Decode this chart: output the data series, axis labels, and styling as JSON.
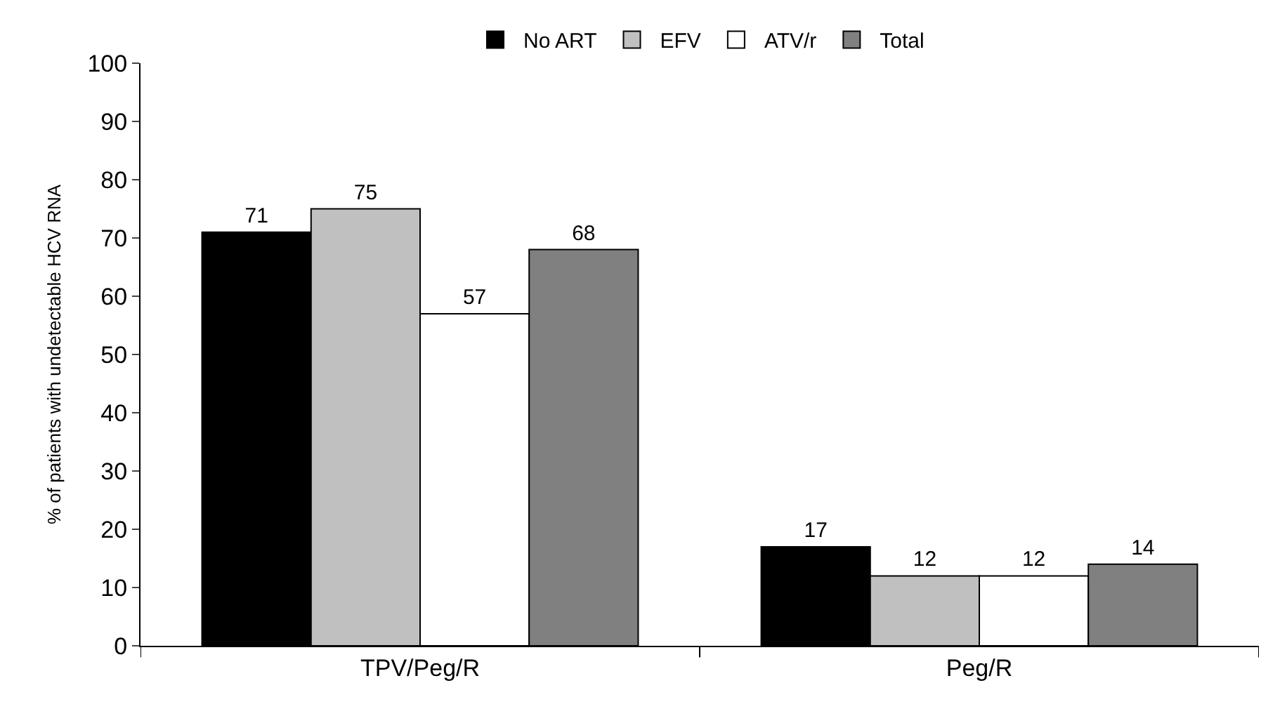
{
  "chart_data": {
    "type": "bar",
    "ylabel": "% of patients with undetectable HCV RNA",
    "categories": [
      "TPV/Peg/R",
      "Peg/R"
    ],
    "series": [
      {
        "name": "No ART",
        "color": "#000000",
        "values": [
          71,
          17
        ]
      },
      {
        "name": "EFV",
        "color": "#c0c0c0",
        "values": [
          75,
          12
        ]
      },
      {
        "name": "ATV/r",
        "color": "#ffffff",
        "values": [
          57,
          12
        ]
      },
      {
        "name": "Total",
        "color": "#808080",
        "values": [
          68,
          14
        ]
      }
    ],
    "ylim": [
      0,
      100
    ],
    "yticks": [
      0,
      10,
      20,
      30,
      40,
      50,
      60,
      70,
      80,
      90,
      100
    ],
    "grid": false,
    "legend": "top",
    "data_labels": true
  }
}
